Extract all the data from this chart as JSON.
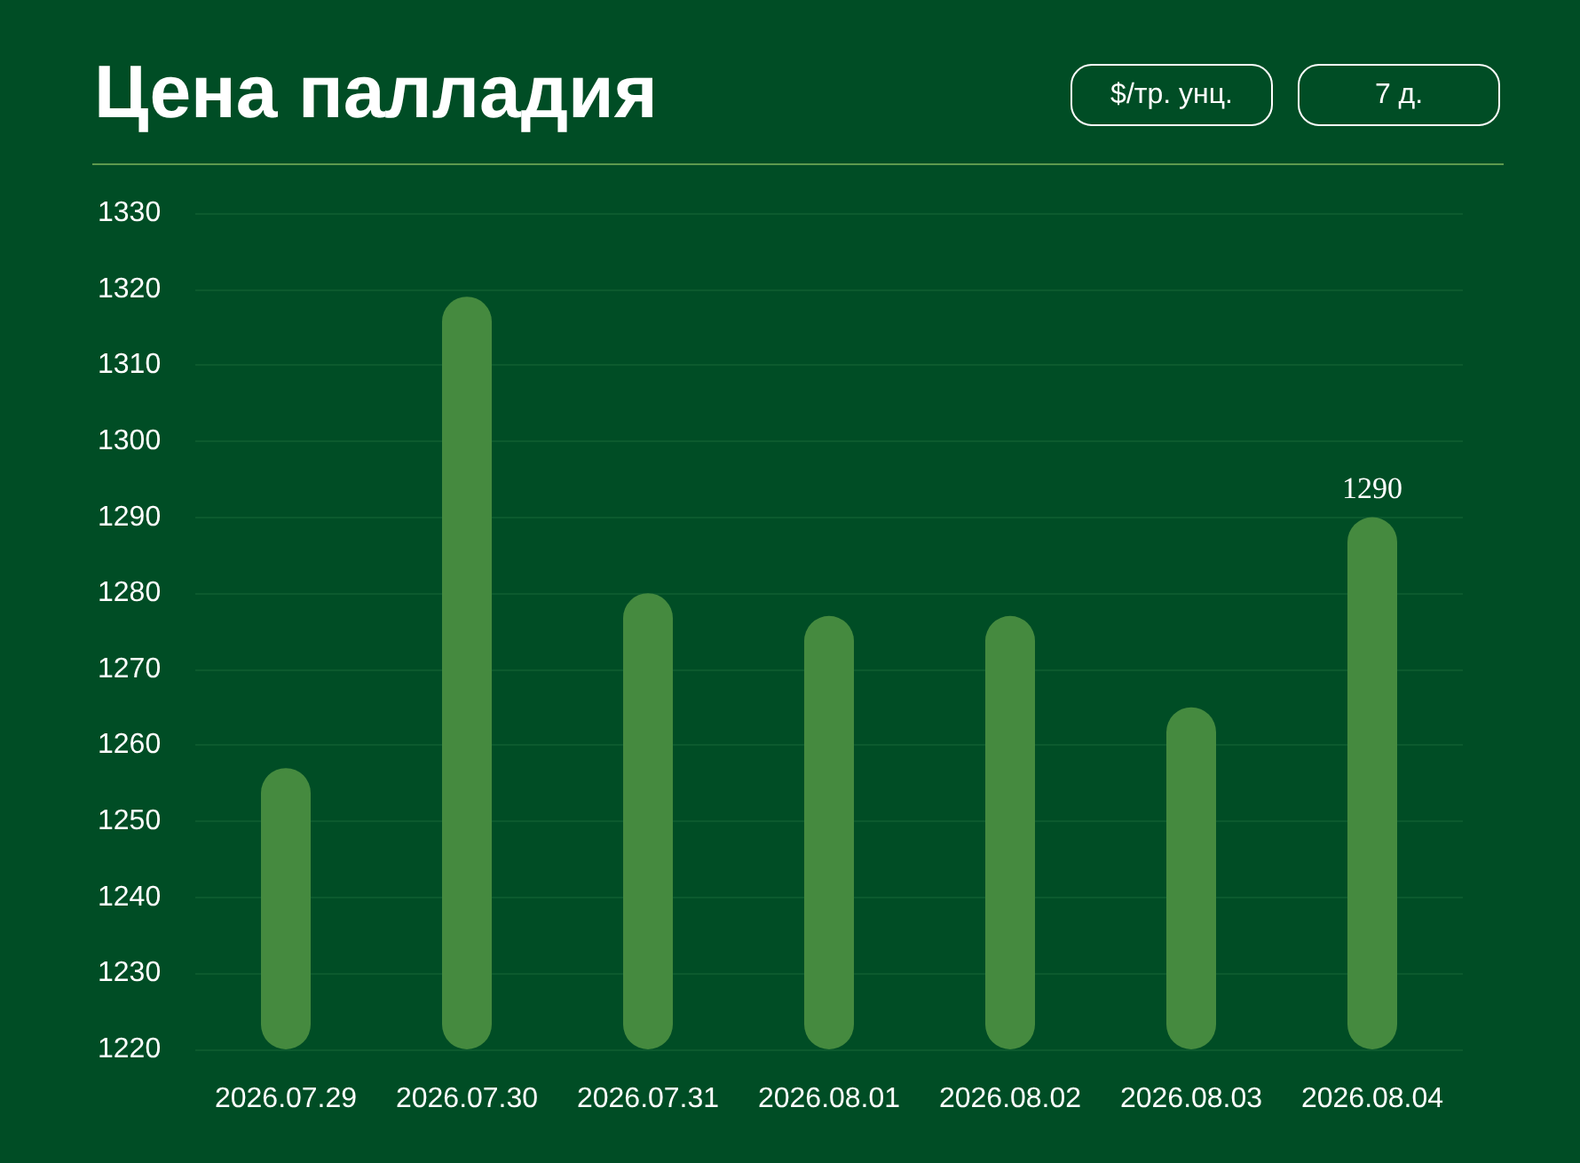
{
  "chart_data": {
    "type": "bar",
    "title": "Цена палладия",
    "annotations": [
      "$/тр. унц.",
      "7 д."
    ],
    "categories": [
      "2026.07.29",
      "2026.07.30",
      "2026.07.31",
      "2026.08.01",
      "2026.08.02",
      "2026.08.03",
      "2026.08.04"
    ],
    "values": [
      1257,
      1319,
      1280,
      1277,
      1277,
      1265,
      1290
    ],
    "value_labels": [
      null,
      null,
      null,
      null,
      null,
      null,
      "1290"
    ],
    "color": "#458a3f",
    "ylim": [
      1220,
      1330
    ],
    "yticks": [
      1220,
      1230,
      1240,
      1250,
      1260,
      1270,
      1280,
      1290,
      1300,
      1310,
      1320,
      1330
    ],
    "grid": "y"
  }
}
